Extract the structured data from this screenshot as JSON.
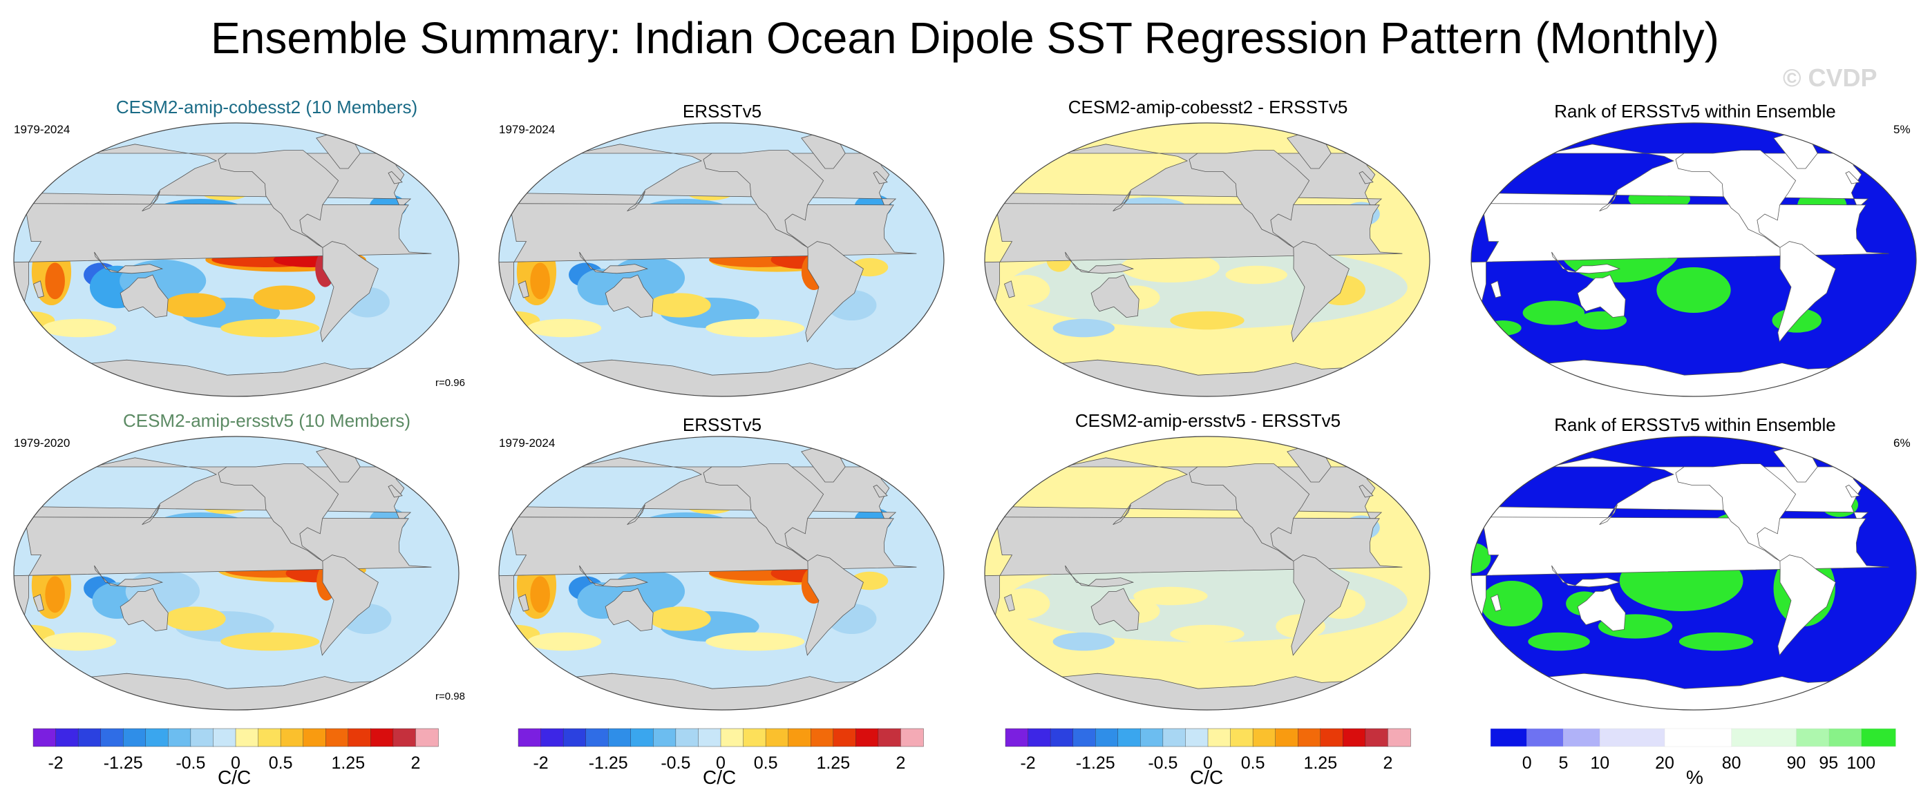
{
  "title": "Ensemble Summary: Indian Ocean Dipole SST Regression Pattern (Monthly)",
  "watermark": "© CVDP",
  "rows": [
    {
      "ensemble": {
        "label": "CESM2-amip-cobesst2 (10 Members)",
        "color": "#1a6b86",
        "years": "1979-2024",
        "r": "r=0.96"
      },
      "obs": {
        "label": "ERSSTv5",
        "years": "1979-2024"
      },
      "diff": {
        "label": "CESM2-amip-cobesst2 - ERSSTv5"
      },
      "rank": {
        "label": "Rank of ERSSTv5 within Ensemble",
        "pct": "5%"
      }
    },
    {
      "ensemble": {
        "label": "CESM2-amip-ersstv5 (10 Members)",
        "color": "#5b8a63",
        "years": "1979-2020",
        "r": "r=0.98"
      },
      "obs": {
        "label": "ERSSTv5",
        "years": "1979-2024"
      },
      "diff": {
        "label": "CESM2-amip-ersstv5 - ERSSTv5"
      },
      "rank": {
        "label": "Rank of ERSSTv5 within Ensemble",
        "pct": "6%"
      }
    }
  ],
  "chart_data": {
    "type": "heatmap",
    "title": "Ensemble Summary: Indian Ocean Dipole SST Regression Pattern (Monthly)",
    "colorbar_sst": {
      "levels": [
        -2,
        -1.75,
        -1.5,
        -1.25,
        -1,
        -0.75,
        -0.5,
        -0.25,
        0,
        0.25,
        0.5,
        0.75,
        1,
        1.25,
        1.5,
        1.75,
        2
      ],
      "tick_labels": [
        "-2",
        "-1.25",
        "-0.5",
        "0",
        "0.5",
        "1.25",
        "2"
      ],
      "colors": [
        "#7b1fe0",
        "#3d26e6",
        "#2b41e0",
        "#2f6de6",
        "#2f8ee8",
        "#3aa6ee",
        "#6cbdf0",
        "#a8d6f3",
        "#c8e6f8",
        "#fff5a0",
        "#fde05a",
        "#fbc02d",
        "#f99b10",
        "#f26a0a",
        "#e83a08",
        "#d90d0d",
        "#c5303d",
        "#f4aab5"
      ],
      "unit": "C/C"
    },
    "colorbar_rank": {
      "tick_labels": [
        "0",
        "5",
        "10",
        "20",
        "80",
        "90",
        "95",
        "100"
      ],
      "colors": [
        "#0a14e6",
        "#6e72f2",
        "#b0b2f8",
        "#e0e1fb",
        "#ffffff",
        "#e2fbe2",
        "#aef7ae",
        "#88f288",
        "#2ee82e"
      ],
      "unit": "%"
    }
  }
}
